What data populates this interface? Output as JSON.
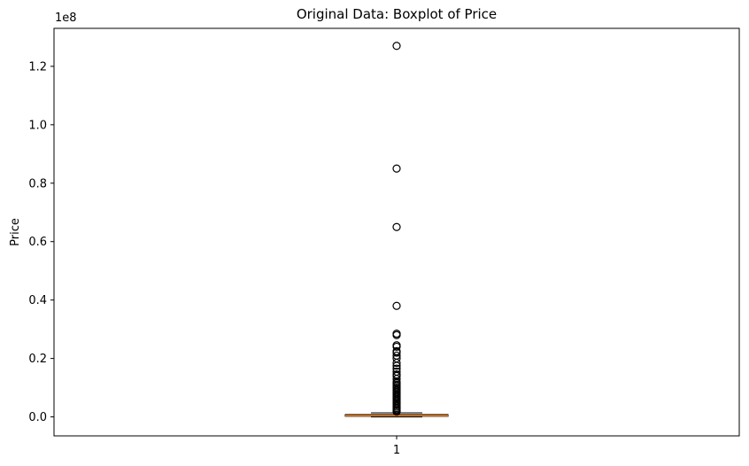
{
  "chart_data": {
    "type": "boxplot",
    "title": "Original Data: Boxplot of Price",
    "xlabel": "",
    "ylabel": "Price",
    "y_scale_label": "1e8",
    "categories": [
      "1"
    ],
    "ylim": [
      -6500000,
      133000000
    ],
    "y_ticks": [
      0,
      20000000,
      40000000,
      60000000,
      80000000,
      100000000,
      120000000
    ],
    "y_tick_labels": [
      "0.0",
      "0.2",
      "0.4",
      "0.6",
      "0.8",
      "1.0",
      "1.2"
    ],
    "grid": false,
    "box": {
      "whisker_low": 0,
      "q1": 200000,
      "median": 400000,
      "q3": 800000,
      "whisker_high": 1400000
    },
    "outliers": [
      127000000,
      85000000,
      65000000,
      38000000,
      28500000,
      28000000,
      24500000,
      24000000,
      22500000,
      22000000,
      21000000,
      20000000,
      18500000,
      17500000,
      16500000,
      15500000,
      14500000,
      14000000,
      13000000,
      12000000,
      11500000,
      11000000,
      10500000,
      10000000,
      9500000,
      9000000,
      8500000,
      8000000,
      7500000,
      7000000,
      6500000,
      6000000,
      5500000,
      5000000,
      4500000,
      4000000,
      3500000,
      3000000,
      2600000,
      2200000,
      1800000
    ],
    "colors": {
      "median": "#ff7f0e",
      "box": "#000000",
      "outlier_edge": "#000000"
    }
  }
}
